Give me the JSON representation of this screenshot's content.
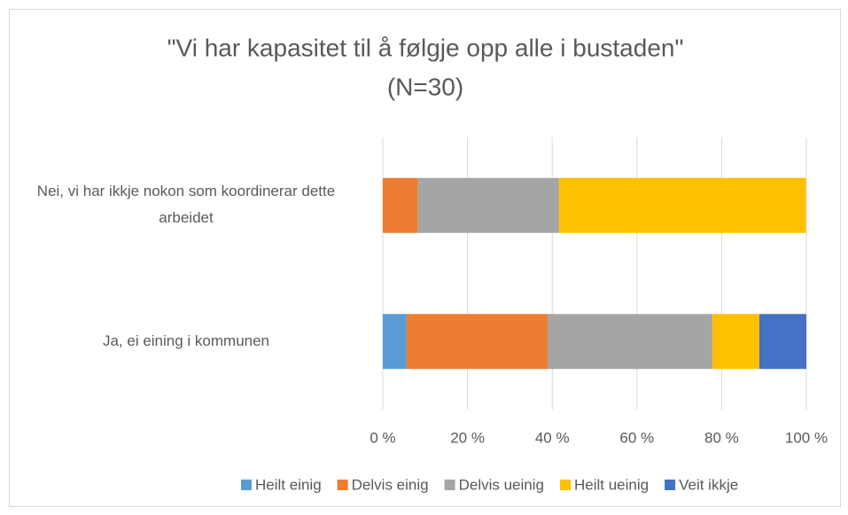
{
  "chart_data": {
    "type": "stacked_bar_horizontal",
    "title": "\"Vi har kapasitet til å følgje opp alle i bustaden\"",
    "subtitle": "(N=30)",
    "categories": [
      "Nei, vi har ikkje nokon som koordinerar dette arbeidet",
      "Ja, ei eining i kommunen"
    ],
    "series": [
      {
        "name": "Heilt einig",
        "color": "#5b9bd5",
        "values": [
          0,
          5.6
        ]
      },
      {
        "name": "Delvis einig",
        "color": "#ed7d31",
        "values": [
          8.3,
          33.3
        ]
      },
      {
        "name": "Delvis ueinig",
        "color": "#a5a5a5",
        "values": [
          33.3,
          38.9
        ]
      },
      {
        "name": "Heilt ueinig",
        "color": "#ffc000",
        "values": [
          58.3,
          11.1
        ]
      },
      {
        "name": "Veit ikkje",
        "color": "#4472c4",
        "values": [
          0,
          11.1
        ]
      }
    ],
    "xlim": [
      0,
      100
    ],
    "xticks": [
      {
        "value": 0,
        "label": "0 %"
      },
      {
        "value": 20,
        "label": "20 %"
      },
      {
        "value": 40,
        "label": "40 %"
      },
      {
        "value": 60,
        "label": "60 %"
      },
      {
        "value": 80,
        "label": "80 %"
      },
      {
        "value": 100,
        "label": "100 %"
      }
    ],
    "grid": true,
    "legend": "bottom"
  }
}
